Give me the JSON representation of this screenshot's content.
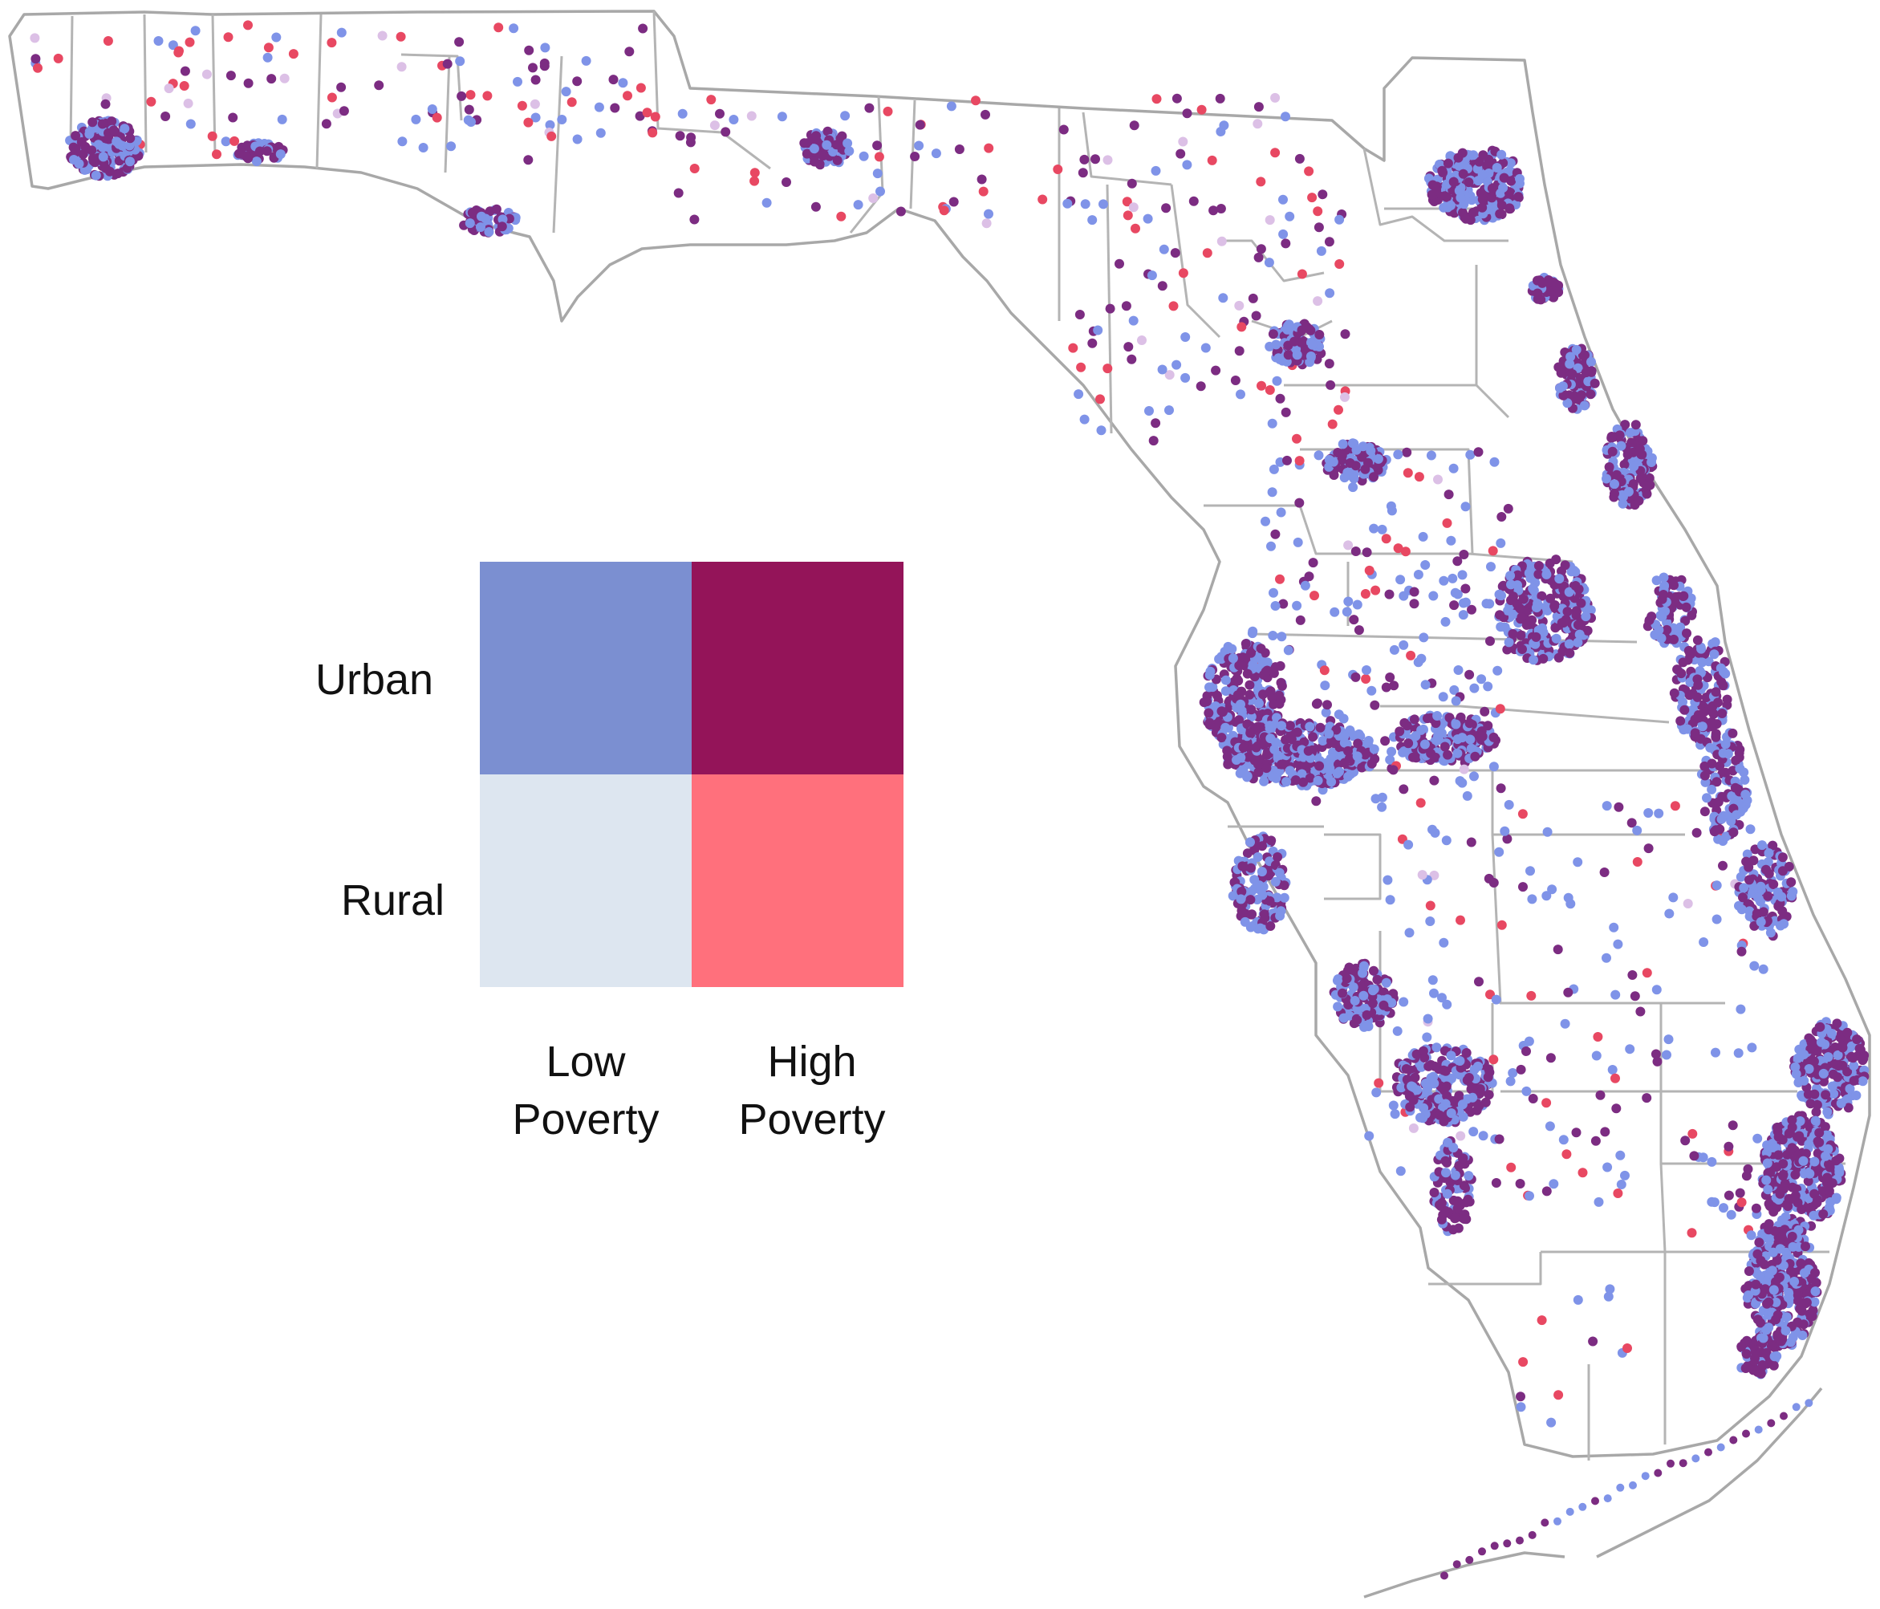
{
  "legend": {
    "row_labels": {
      "urban": "Urban",
      "rural": "Rural"
    },
    "col_labels": {
      "low": {
        "line1": "Low",
        "line2": "Poverty"
      },
      "high": {
        "line1": "High",
        "line2": "Poverty"
      }
    },
    "colors": {
      "urban_low": "#7b8fd1",
      "urban_high": "#941459",
      "rural_low": "#dde6f0",
      "rural_high": "#ff707c"
    }
  },
  "dot_colors": {
    "urban_low": "#7f93e8",
    "urban_high": "#7c2c82",
    "rural_low": "#dcc0e6",
    "rural_high": "#e84862"
  },
  "map_colors": {
    "land": "#ffffff",
    "boundary": "#b4b4b4"
  }
}
